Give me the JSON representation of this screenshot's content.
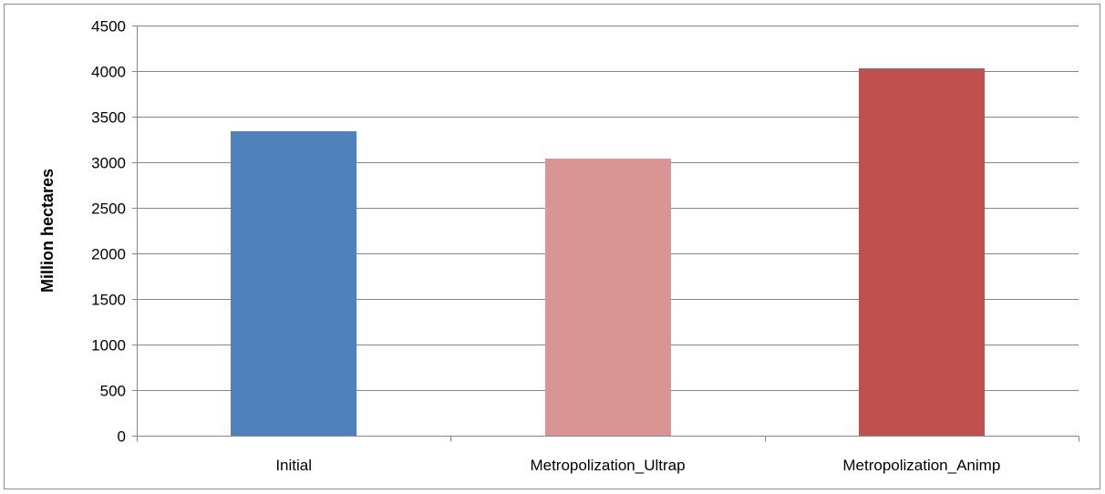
{
  "chart_data": {
    "type": "bar",
    "categories": [
      "Initial",
      "Metropolization_Ultrap",
      "Metropolization_Animp"
    ],
    "values": [
      3340,
      3040,
      4030
    ],
    "bar_colors": [
      "#4F81BD",
      "#D99594",
      "#C0504D"
    ],
    "title": "",
    "xlabel": "",
    "ylabel": "Million hectares",
    "ylim": [
      0,
      4500
    ],
    "yticks": [
      0,
      500,
      1000,
      1500,
      2000,
      2500,
      3000,
      3500,
      4000,
      4500
    ],
    "grid": true,
    "legend": "none"
  }
}
